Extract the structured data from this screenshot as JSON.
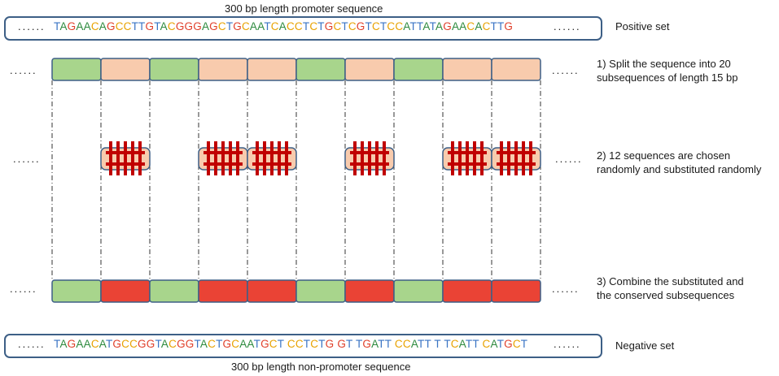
{
  "top_caption": "300 bp length promoter sequence",
  "bottom_caption": "300 bp length non-promoter sequence",
  "ellipsis": "......",
  "positive": {
    "label": "Positive set",
    "sequence": "TAGAACAGCCTTGTACGGGAGCTGCAATCACCTCTGCTCGTCTCCATTATAGAACACTTG"
  },
  "negative": {
    "label": "Negative set",
    "sequence": "TAGAACATGCCGGTACGGTACTGCAATGCT CCTCTG GT TGATT CCATT T TCATT CATGCT"
  },
  "steps": {
    "step1": [
      "1) Split the sequence into 20",
      "subsequences of length 15 bp"
    ],
    "step2": [
      "2) 12 sequences are chosen",
      "randomly and  substituted randomly"
    ],
    "step3": [
      "3) Combine  the  substituted  and",
      "the conserved subsequences"
    ]
  },
  "colors": {
    "A": "#2d8a3e",
    "C": "#e8a200",
    "G": "#e0402b",
    "T": "#3a74c4",
    "green_block": "#a8d58c",
    "peach_block": "#f8cbad",
    "red_block": "#ea4335",
    "block_border": "#3d5f86",
    "bars": "#c00000"
  },
  "segments": {
    "row1": [
      "green",
      "peach",
      "green",
      "peach",
      "peach",
      "green",
      "peach",
      "green",
      "peach",
      "peach"
    ],
    "row2_substituted": [
      false,
      true,
      false,
      true,
      true,
      false,
      true,
      false,
      true,
      true
    ],
    "row3": [
      "green",
      "red",
      "green",
      "red",
      "red",
      "green",
      "red",
      "green",
      "red",
      "red"
    ]
  }
}
